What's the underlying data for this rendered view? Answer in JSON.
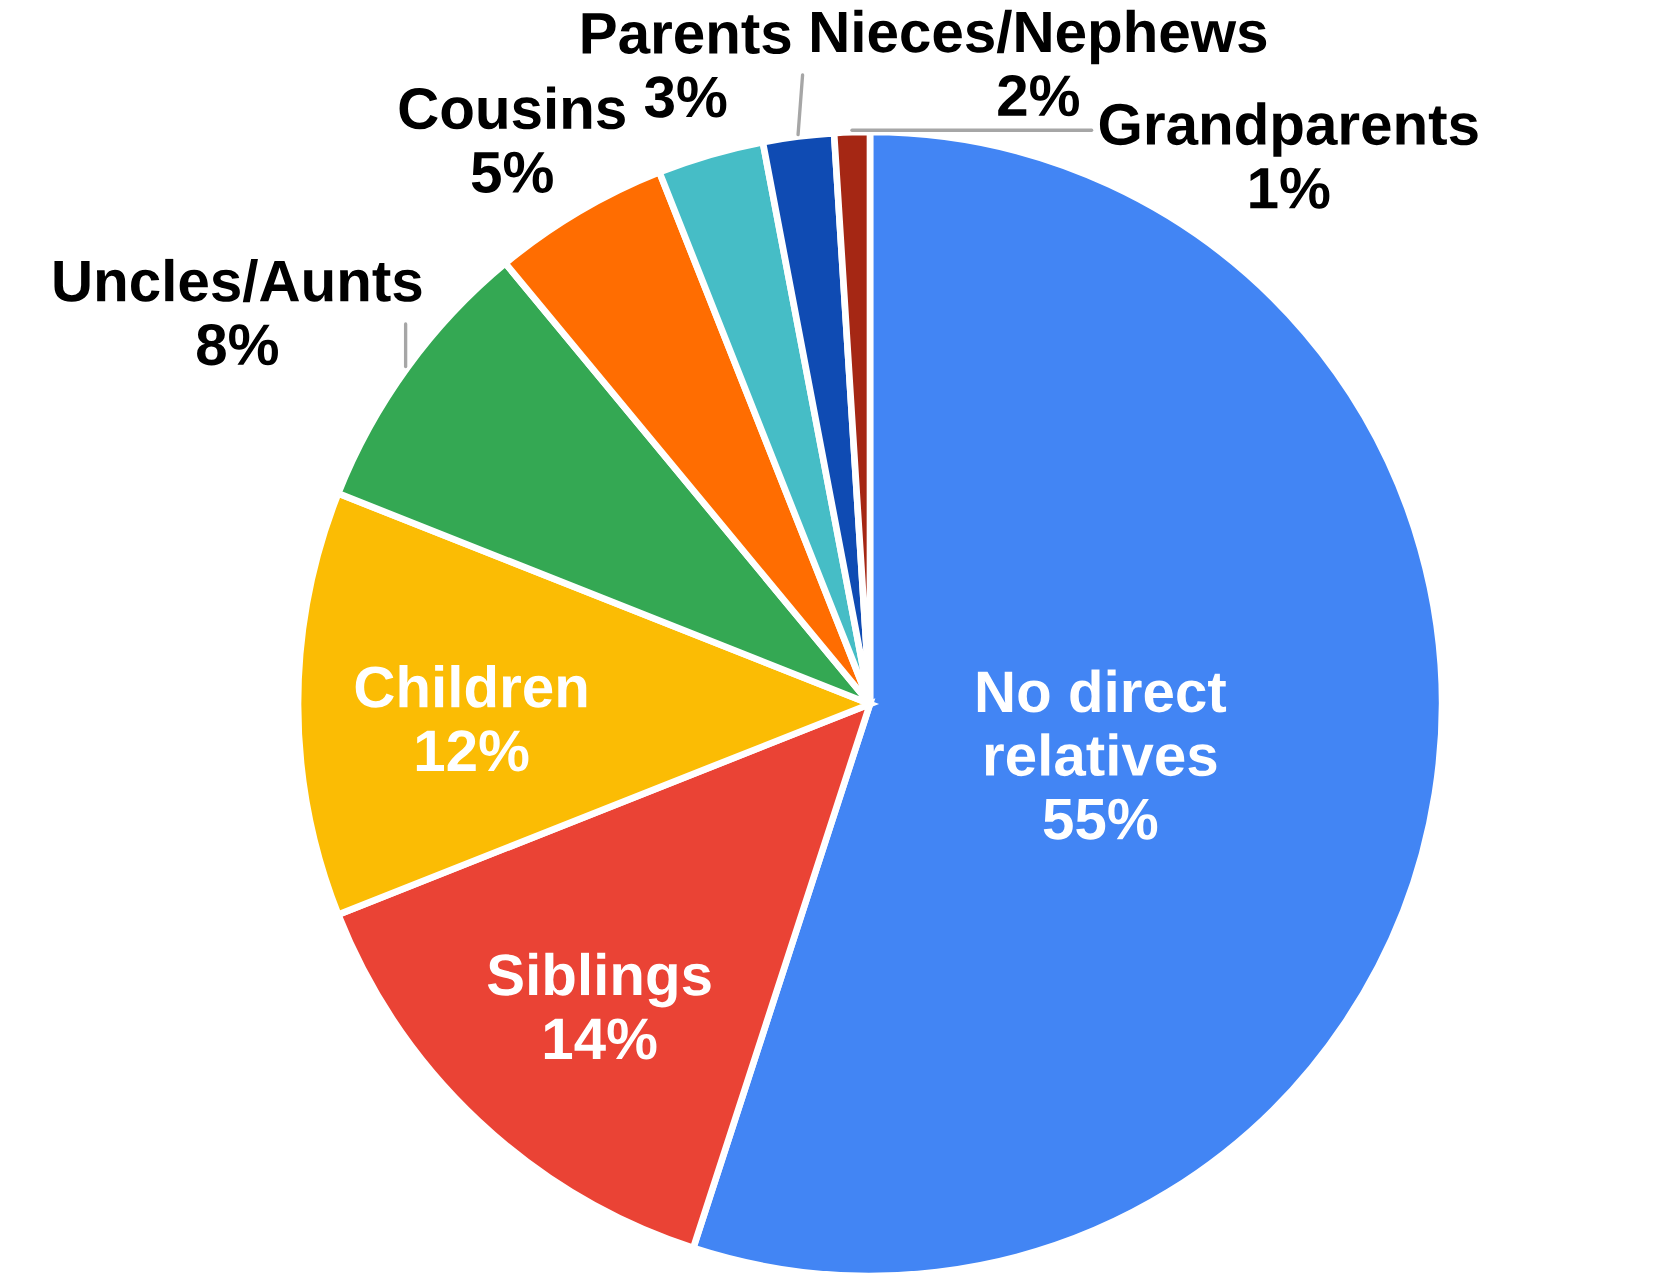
{
  "chart_data": {
    "type": "pie",
    "categories": [
      "No direct relatives",
      "Siblings",
      "Children",
      "Uncles/Aunts",
      "Cousins",
      "Parents",
      "Nieces/Nephews",
      "Grandparents"
    ],
    "values": [
      55,
      14,
      12,
      8,
      5,
      3,
      2,
      1
    ],
    "value_labels": [
      "55%",
      "14%",
      "12%",
      "8%",
      "5%",
      "3%",
      "2%",
      "1%"
    ],
    "colors": [
      "#4285f4",
      "#ea4335",
      "#fbbc04",
      "#34a853",
      "#ff6d01",
      "#46bdc6",
      "#0f4bb3",
      "#a52714"
    ]
  }
}
